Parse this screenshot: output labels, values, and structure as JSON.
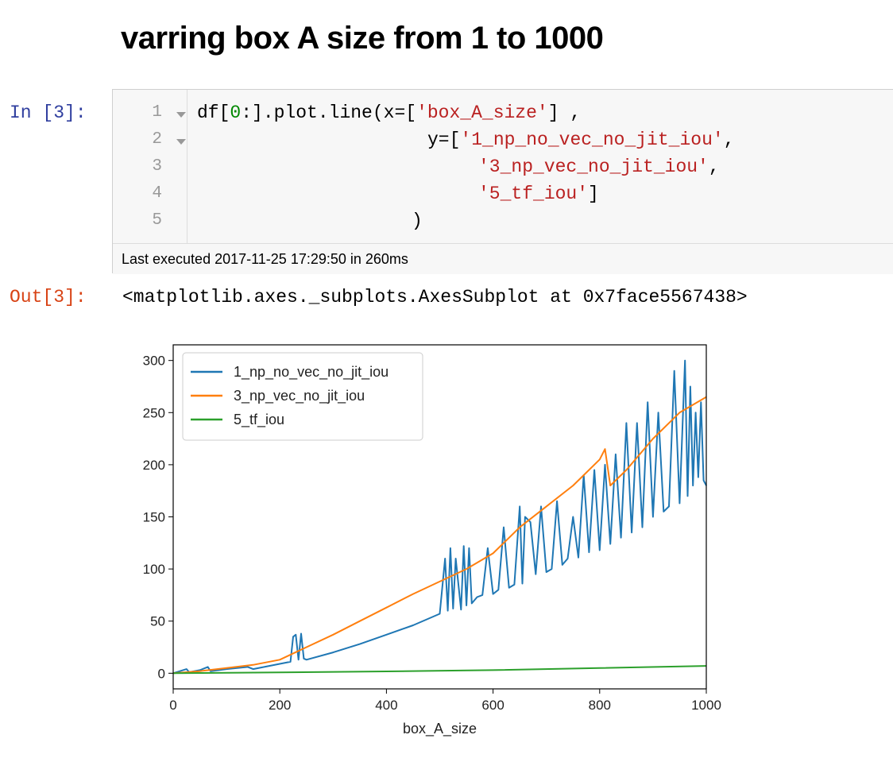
{
  "heading": "varring box A size from 1 to 1000",
  "cell": {
    "in_prompt": "In [3]:",
    "out_prompt": "Out[3]:",
    "line_numbers": [
      "1",
      "2",
      "3",
      "4",
      "5"
    ],
    "code": {
      "l1_a": "df[",
      "l1_num": "0",
      "l1_b": ":].plot.line(x=[",
      "l1_str": "'box_A_size'",
      "l1_c": "] ,",
      "l2_a": "y=[",
      "l2_str": "'1_np_no_vec_no_jit_iou'",
      "l2_b": ",",
      "l3_str": "'3_np_vec_no_jit_iou'",
      "l3_b": ",",
      "l4_str": "'5_tf_iou'",
      "l4_b": "]",
      "l5": ")"
    },
    "exec_status": "Last executed 2017-11-25 17:29:50 in 260ms",
    "output_text": "<matplotlib.axes._subplots.AxesSubplot at 0x7face5567438>"
  },
  "chart_data": {
    "type": "line",
    "xlabel": "box_A_size",
    "ylabel": "",
    "xlim": [
      0,
      1000
    ],
    "ylim": [
      -15,
      315
    ],
    "xticks": [
      0,
      200,
      400,
      600,
      800,
      1000
    ],
    "yticks": [
      0,
      50,
      100,
      150,
      200,
      250,
      300
    ],
    "grid": false,
    "legend": "top-left",
    "colors": {
      "blue": "#1f77b4",
      "orange": "#ff7f0e",
      "green": "#2ca02c"
    },
    "series": [
      {
        "name": "1_np_no_vec_no_jit_iou",
        "color": "#1f77b4",
        "x": [
          0,
          25,
          30,
          50,
          65,
          70,
          100,
          140,
          150,
          200,
          220,
          225,
          230,
          235,
          240,
          245,
          250,
          300,
          350,
          400,
          450,
          500,
          510,
          515,
          520,
          525,
          530,
          540,
          545,
          550,
          555,
          560,
          570,
          580,
          590,
          600,
          610,
          620,
          630,
          640,
          650,
          655,
          660,
          670,
          680,
          690,
          700,
          710,
          720,
          730,
          740,
          750,
          760,
          770,
          780,
          790,
          800,
          810,
          820,
          830,
          840,
          850,
          860,
          870,
          880,
          890,
          900,
          910,
          920,
          930,
          940,
          950,
          960,
          965,
          970,
          975,
          980,
          985,
          990,
          995,
          1000
        ],
        "y": [
          0,
          4,
          1,
          3,
          6,
          2,
          4,
          6,
          4,
          9,
          11,
          35,
          37,
          13,
          38,
          14,
          13,
          20,
          28,
          37,
          46,
          57,
          110,
          60,
          120,
          62,
          110,
          61,
          122,
          65,
          120,
          67,
          73,
          75,
          120,
          76,
          80,
          140,
          82,
          85,
          160,
          86,
          150,
          145,
          95,
          160,
          97,
          100,
          165,
          104,
          110,
          150,
          111,
          190,
          116,
          195,
          118,
          200,
          124,
          210,
          130,
          240,
          135,
          240,
          140,
          260,
          150,
          250,
          155,
          160,
          290,
          163,
          300,
          170,
          275,
          180,
          250,
          188,
          260,
          185,
          180
        ]
      },
      {
        "name": "3_np_vec_no_jit_iou",
        "color": "#ff7f0e",
        "x": [
          0,
          50,
          100,
          150,
          200,
          250,
          300,
          350,
          400,
          450,
          500,
          550,
          600,
          650,
          700,
          750,
          800,
          810,
          820,
          850,
          900,
          950,
          1000
        ],
        "y": [
          0,
          2,
          5,
          8,
          13,
          25,
          37,
          50,
          63,
          76,
          88,
          100,
          115,
          140,
          160,
          180,
          205,
          215,
          180,
          195,
          225,
          250,
          265
        ]
      },
      {
        "name": "5_tf_iou",
        "color": "#2ca02c",
        "x": [
          0,
          200,
          400,
          600,
          800,
          1000
        ],
        "y": [
          0,
          0.8,
          1.8,
          3,
          5,
          7
        ]
      }
    ]
  }
}
